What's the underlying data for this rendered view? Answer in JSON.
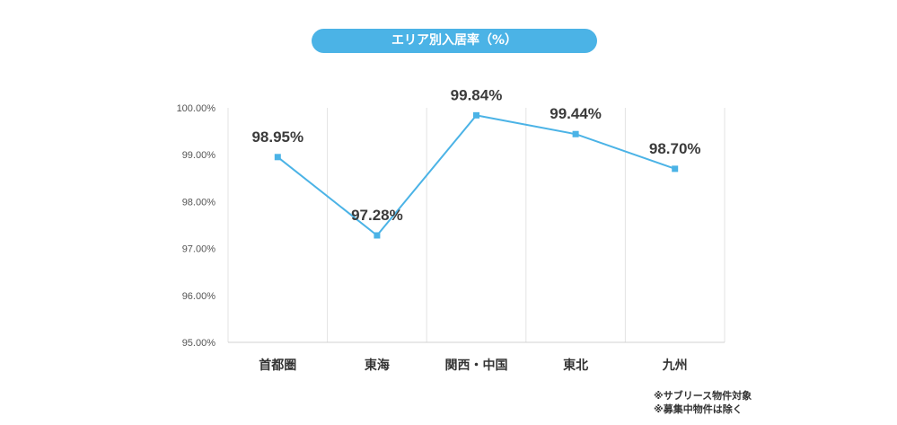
{
  "chart_data": {
    "type": "line",
    "title": "エリア別入居率（%）",
    "categories": [
      "首都圏",
      "東海",
      "関西・中国",
      "東北",
      "九州"
    ],
    "series": [
      {
        "values": [
          98.95,
          97.28,
          99.84,
          99.44,
          98.7
        ]
      }
    ],
    "value_labels": [
      "98.95%",
      "97.28%",
      "99.84%",
      "99.44%",
      "98.70%"
    ],
    "ylim": [
      95,
      100
    ],
    "yticks": [
      "95.00%",
      "96.00%",
      "97.00%",
      "98.00%",
      "99.00%",
      "100.00%"
    ],
    "grid": "vertical",
    "line_color": "#4bb3e6",
    "notes": [
      "※サブリース物件対象",
      "※募集中物件は除く"
    ]
  }
}
